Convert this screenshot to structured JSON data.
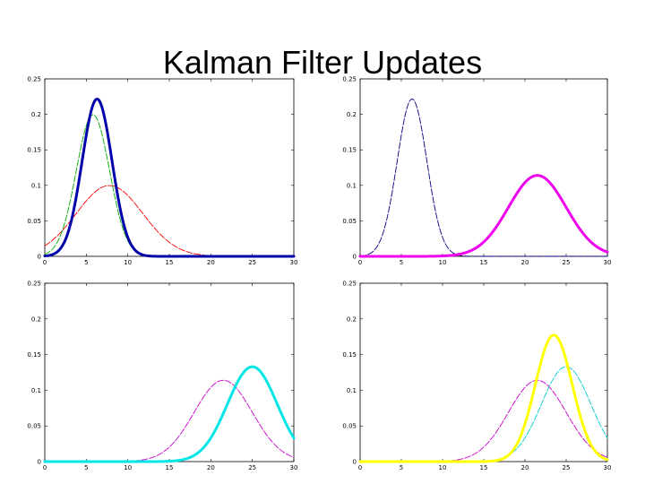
{
  "title": "Kalman Filter Updates",
  "chart_data": [
    {
      "type": "line",
      "position": "top-left",
      "xlim": [
        0,
        30
      ],
      "ylim": [
        0,
        0.25
      ],
      "xticks": [
        "0",
        "5",
        "10",
        "15",
        "20",
        "25",
        "30"
      ],
      "yticks": [
        "0",
        "0.05",
        "0.1",
        "0.15",
        "0.2",
        "0.25"
      ],
      "series": [
        {
          "color": "#ff0000",
          "style": "dashed",
          "weight": "thin",
          "mean": 7.8,
          "sd": 4.0
        },
        {
          "color": "#00aa00",
          "style": "dashed",
          "weight": "thin",
          "mean": 5.8,
          "sd": 2.0
        },
        {
          "color": "#0000aa",
          "style": "solid",
          "weight": "thick",
          "mean": 6.3,
          "sd": 1.8
        }
      ]
    },
    {
      "type": "line",
      "position": "top-right",
      "xlim": [
        0,
        30
      ],
      "ylim": [
        0,
        0.25
      ],
      "xticks": [
        "0",
        "5",
        "10",
        "15",
        "20",
        "25",
        "30"
      ],
      "yticks": [
        "0",
        "0.05",
        "0.1",
        "0.15",
        "0.2",
        "0.25"
      ],
      "series": [
        {
          "color": "#000080",
          "style": "dashed",
          "weight": "thin",
          "mean": 6.3,
          "sd": 1.8
        },
        {
          "color": "#ee00ee",
          "style": "solid",
          "weight": "thick",
          "mean": 21.5,
          "sd": 3.5
        }
      ]
    },
    {
      "type": "line",
      "position": "bottom-left",
      "xlim": [
        0,
        30
      ],
      "ylim": [
        0,
        0.25
      ],
      "xticks": [
        "0",
        "5",
        "10",
        "15",
        "20",
        "25",
        "30"
      ],
      "yticks": [
        "0",
        "0.05",
        "0.1",
        "0.15",
        "0.2",
        "0.25"
      ],
      "series": [
        {
          "color": "#cc00cc",
          "style": "dashed",
          "weight": "thin",
          "mean": 21.5,
          "sd": 3.5
        },
        {
          "color": "#00e5e5",
          "style": "solid",
          "weight": "thick",
          "mean": 25,
          "sd": 3.0
        }
      ]
    },
    {
      "type": "line",
      "position": "bottom-right",
      "xlim": [
        0,
        30
      ],
      "ylim": [
        0,
        0.25
      ],
      "xticks": [
        "0",
        "5",
        "10",
        "15",
        "20",
        "25",
        "30"
      ],
      "yticks": [
        "0",
        "0.05",
        "0.1",
        "0.15",
        "0.2",
        "0.25"
      ],
      "series": [
        {
          "color": "#cc00cc",
          "style": "dashed",
          "weight": "thin",
          "mean": 21.5,
          "sd": 3.5
        },
        {
          "color": "#00cccc",
          "style": "dashed",
          "weight": "thin",
          "mean": 25,
          "sd": 3.0
        },
        {
          "color": "#ffff00",
          "style": "solid",
          "weight": "thick",
          "mean": 23.5,
          "sd": 2.25
        }
      ]
    }
  ]
}
